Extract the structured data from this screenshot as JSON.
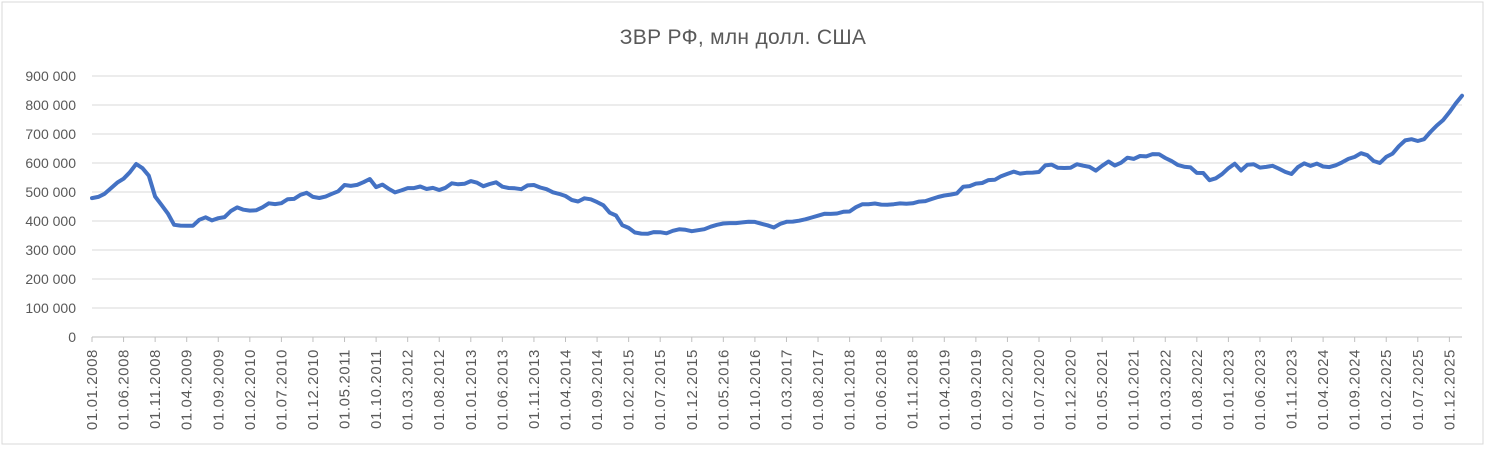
{
  "title": "ЗВР РФ, млн долл. США",
  "colors": {
    "line": "#4472C4",
    "gridline": "#D9D9D9",
    "axis": "#BFBFBF",
    "text": "#595959",
    "chart_border": "#D9D9D9",
    "background": "#FFFFFF"
  },
  "chart_data": {
    "type": "line",
    "title": "ЗВР РФ, млн долл. США",
    "series_name": "ЗВР РФ",
    "unit": "млн долл. США",
    "frequency": "monthly",
    "start_date": "01.01.2008",
    "legend": "none",
    "grid": true,
    "ylim": [
      0,
      900000
    ],
    "y_tick_step": 100000,
    "y_tick_labels": [
      "900 000",
      "800 000",
      "700 000",
      "600 000",
      "500 000",
      "400 000",
      "300 000",
      "200 000",
      "100 000",
      "0"
    ],
    "x_tick_every_n_months": 5,
    "x_tick_labels": [
      "01.01.2008",
      "01.06.2008",
      "01.11.2008",
      "01.04.2009",
      "01.09.2009",
      "01.02.2010",
      "01.07.2010",
      "01.12.2010",
      "01.05.2011",
      "01.10.2011",
      "01.03.2012",
      "01.08.2012",
      "01.01.2013",
      "01.06.2013",
      "01.11.2013",
      "01.04.2014",
      "01.09.2014",
      "01.02.2015",
      "01.07.2015",
      "01.12.2015",
      "01.05.2016",
      "01.10.2016",
      "01.03.2017",
      "01.08.2017",
      "01.01.2018",
      "01.06.2018",
      "01.11.2018",
      "01.04.2019",
      "01.09.2019",
      "01.02.2020",
      "01.07.2020",
      "01.12.2020",
      "01.05.2021",
      "01.10.2021",
      "01.03.2022",
      "01.08.2022",
      "01.01.2023",
      "01.06.2023",
      "01.11.2023",
      "01.04.2024",
      "01.09.2024",
      "01.02.2025",
      "01.07.2025",
      "01.12.2025"
    ],
    "values": [
      478800,
      483200,
      493700,
      512600,
      532500,
      546000,
      568300,
      596600,
      582200,
      556100,
      484600,
      455700,
      426300,
      386900,
      384100,
      383900,
      383800,
      404200,
      412600,
      402000,
      409600,
      413400,
      434400,
      447000,
      439000,
      435800,
      436800,
      447400,
      461200,
      458200,
      461400,
      475300,
      476300,
      490100,
      497100,
      483100,
      479400,
      484200,
      493800,
      502500,
      524000,
      521100,
      524500,
      533900,
      545000,
      516800,
      525600,
      510900,
      498600,
      505400,
      513500,
      513500,
      518800,
      510400,
      514300,
      507000,
      514600,
      529900,
      526400,
      528200,
      537600,
      532200,
      519900,
      527700,
      533500,
      518400,
      513800,
      512800,
      509700,
      522600,
      524300,
      515600,
      509600,
      498900,
      493300,
      486100,
      472300,
      467200,
      478300,
      475000,
      465200,
      454200,
      428600,
      418900,
      385500,
      376200,
      360200,
      356400,
      356000,
      361600,
      361500,
      357600,
      366300,
      371300,
      369600,
      364700,
      368400,
      371600,
      380500,
      387000,
      391500,
      392800,
      392900,
      395200,
      397700,
      397000,
      390700,
      385300,
      377700,
      390100,
      397300,
      398000,
      401100,
      405700,
      412200,
      418400,
      424800,
      424500,
      425800,
      431600,
      432700,
      447700,
      457700,
      458000,
      460400,
      456700,
      456300,
      458000,
      460600,
      459200,
      461000,
      466900,
      468500,
      475900,
      482800,
      487800,
      491100,
      495200,
      518400,
      520200,
      529100,
      530900,
      540900,
      542000,
      554400,
      562300,
      570400,
      563500,
      566100,
      566900,
      568900,
      591800,
      594400,
      583400,
      582700,
      583900,
      595800,
      590700,
      586400,
      573900,
      590500,
      605200,
      591500,
      601000,
      618200,
      614100,
      624300,
      622800,
      630600,
      630200,
      617100,
      606400,
      593100,
      587300,
      584800,
      565700,
      565400,
      540700,
      547200,
      561600,
      582000,
      597700,
      574000,
      593900,
      595800,
      584000,
      586700,
      590400,
      580400,
      569400,
      562000,
      586000,
      598600,
      590000,
      598000,
      588000,
      586000,
      592000,
      602000,
      614000,
      621000,
      633700,
      627000,
      607000,
      600000,
      621000,
      632400,
      658000,
      678000,
      682000,
      676000,
      682000,
      707000,
      729000,
      748100,
      775000,
      805000,
      832000
    ]
  }
}
